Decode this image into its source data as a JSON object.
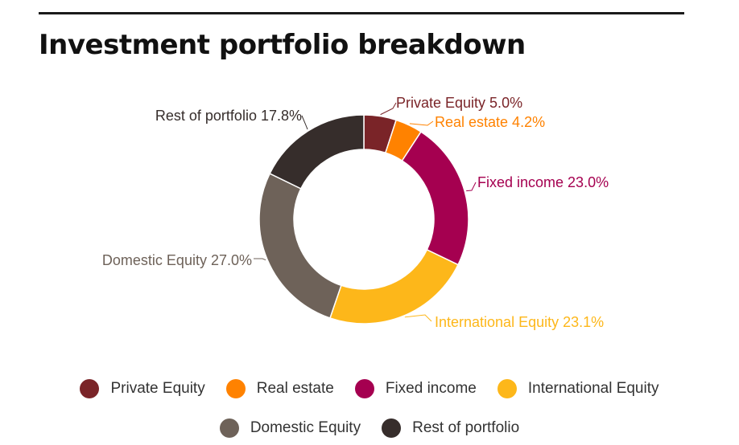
{
  "chart_data": {
    "type": "pie",
    "title": "Investment portfolio breakdown",
    "donut": true,
    "slices": [
      {
        "label": "Private Equity",
        "value": 5.0,
        "value_label": "5.0%",
        "color": "#7a2428"
      },
      {
        "label": "Real estate",
        "value": 4.2,
        "value_label": "4.2%",
        "color": "#ff8200"
      },
      {
        "label": "Fixed income",
        "value": 23.0,
        "value_label": "23.0%",
        "color": "#a50050"
      },
      {
        "label": "International Equity",
        "value": 23.1,
        "value_label": "23.1%",
        "color": "#fdb71a"
      },
      {
        "label": "Domestic Equity",
        "value": 27.0,
        "value_label": "27.0%",
        "color": "#6e6259"
      },
      {
        "label": "Rest of portfolio",
        "value": 17.8,
        "value_label": "17.8%",
        "color": "#362d2b"
      }
    ],
    "legend_position": "bottom"
  }
}
